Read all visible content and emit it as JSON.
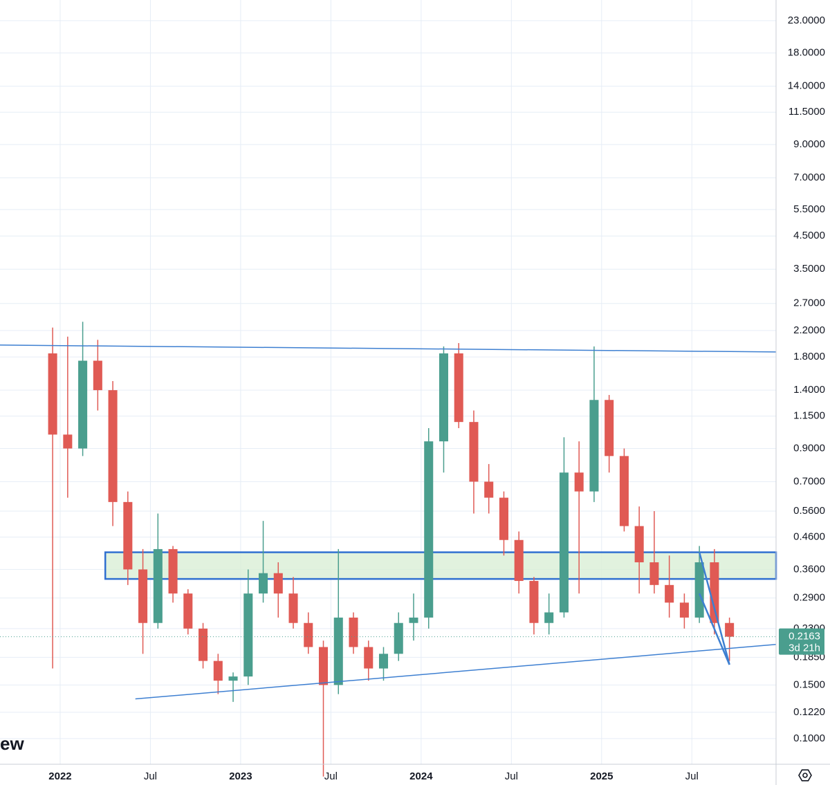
{
  "chart_data": {
    "type": "candlestick",
    "log_scale": true,
    "grid": true,
    "up_color": "#4a9e8e",
    "down_color": "#e05a54",
    "x": [
      "2021-12",
      "2022-01",
      "2022-02",
      "2022-03",
      "2022-04",
      "2022-05",
      "2022-06",
      "2022-07",
      "2022-08",
      "2022-09",
      "2022-10",
      "2022-11",
      "2022-12",
      "2023-01",
      "2023-02",
      "2023-03",
      "2023-04",
      "2023-05",
      "2023-06",
      "2023-07",
      "2023-08",
      "2023-09",
      "2023-10",
      "2023-11",
      "2023-12",
      "2024-01",
      "2024-02",
      "2024-03",
      "2024-04",
      "2024-05",
      "2024-06",
      "2024-07",
      "2024-08",
      "2024-09",
      "2024-10",
      "2024-11",
      "2024-12",
      "2025-01",
      "2025-02",
      "2025-03",
      "2025-04",
      "2025-05",
      "2025-06",
      "2025-07",
      "2025-08",
      "2025-09"
    ],
    "open": [
      1.85,
      1.0,
      0.9,
      1.75,
      1.4,
      0.6,
      0.36,
      0.24,
      0.42,
      0.3,
      0.23,
      0.18,
      0.155,
      0.16,
      0.3,
      0.35,
      0.3,
      0.24,
      0.2,
      0.15,
      0.25,
      0.2,
      0.17,
      0.19,
      0.24,
      0.25,
      0.95,
      1.85,
      1.1,
      0.7,
      0.62,
      0.45,
      0.33,
      0.24,
      0.26,
      0.75,
      0.65,
      1.3,
      0.85,
      0.5,
      0.38,
      0.32,
      0.28,
      0.25,
      0.38,
      0.24
    ],
    "high": [
      2.25,
      2.1,
      2.35,
      2.05,
      1.5,
      0.65,
      0.42,
      0.55,
      0.43,
      0.31,
      0.24,
      0.19,
      0.165,
      0.36,
      0.52,
      0.38,
      0.34,
      0.26,
      0.21,
      0.42,
      0.26,
      0.21,
      0.2,
      0.26,
      0.3,
      1.05,
      1.95,
      2.0,
      1.2,
      0.8,
      0.65,
      0.48,
      0.34,
      0.3,
      0.98,
      0.95,
      1.95,
      1.35,
      0.9,
      0.58,
      0.56,
      0.4,
      0.3,
      0.43,
      0.42,
      0.25
    ],
    "low": [
      0.17,
      0.62,
      0.85,
      1.2,
      0.5,
      0.32,
      0.19,
      0.23,
      0.28,
      0.22,
      0.17,
      0.14,
      0.132,
      0.15,
      0.28,
      0.25,
      0.23,
      0.19,
      0.075,
      0.14,
      0.19,
      0.155,
      0.155,
      0.18,
      0.21,
      0.23,
      0.75,
      1.05,
      0.55,
      0.55,
      0.4,
      0.3,
      0.22,
      0.22,
      0.25,
      0.3,
      0.6,
      0.75,
      0.48,
      0.3,
      0.3,
      0.25,
      0.23,
      0.24,
      0.22,
      0.18
    ],
    "close": [
      1.0,
      0.9,
      1.75,
      1.4,
      0.6,
      0.36,
      0.24,
      0.42,
      0.3,
      0.23,
      0.18,
      0.155,
      0.16,
      0.3,
      0.35,
      0.3,
      0.24,
      0.2,
      0.15,
      0.25,
      0.2,
      0.17,
      0.19,
      0.24,
      0.25,
      0.95,
      1.85,
      1.1,
      0.7,
      0.62,
      0.45,
      0.33,
      0.24,
      0.26,
      0.75,
      0.65,
      1.3,
      0.85,
      0.5,
      0.38,
      0.32,
      0.28,
      0.25,
      0.38,
      0.24,
      0.2163
    ],
    "xlim": [
      "2021-09",
      "2025-12"
    ],
    "xticks": [
      {
        "value": "2022-01",
        "label": "2022"
      },
      {
        "value": "2022-07",
        "label": "Jul"
      },
      {
        "value": "2023-01",
        "label": "2023"
      },
      {
        "value": "2023-07",
        "label": "Jul"
      },
      {
        "value": "2024-01",
        "label": "2024"
      },
      {
        "value": "2024-07",
        "label": "Jul"
      },
      {
        "value": "2025-01",
        "label": "2025"
      },
      {
        "value": "2025-07",
        "label": "Jul"
      }
    ],
    "ylim": [
      0.0823,
      26.9
    ],
    "yticks": [
      {
        "value": 23,
        "label": "23.0000"
      },
      {
        "value": 18,
        "label": "18.0000"
      },
      {
        "value": 14,
        "label": "14.0000"
      },
      {
        "value": 11.5,
        "label": "11.5000"
      },
      {
        "value": 9,
        "label": "9.0000"
      },
      {
        "value": 7,
        "label": "7.0000"
      },
      {
        "value": 5.5,
        "label": "5.5000"
      },
      {
        "value": 4.5,
        "label": "4.5000"
      },
      {
        "value": 3.5,
        "label": "3.5000"
      },
      {
        "value": 2.7,
        "label": "2.7000"
      },
      {
        "value": 2.2,
        "label": "2.2000"
      },
      {
        "value": 1.8,
        "label": "1.8000"
      },
      {
        "value": 1.4,
        "label": "1.4000"
      },
      {
        "value": 1.15,
        "label": "1.1500"
      },
      {
        "value": 0.9,
        "label": "0.9000"
      },
      {
        "value": 0.7,
        "label": "0.7000"
      },
      {
        "value": 0.56,
        "label": "0.5600"
      },
      {
        "value": 0.46,
        "label": "0.4600"
      },
      {
        "value": 0.36,
        "label": "0.3600"
      },
      {
        "value": 0.29,
        "label": "0.2900"
      },
      {
        "value": 0.23,
        "label": "0.2300"
      },
      {
        "value": 0.185,
        "label": "0.1850"
      },
      {
        "value": 0.15,
        "label": "0.1500"
      },
      {
        "value": 0.122,
        "label": "0.1220"
      },
      {
        "value": 0.1,
        "label": "0.1000"
      }
    ],
    "last_price": 0.2163,
    "countdown": "3d 21h",
    "trend_lines": [
      {
        "color": "#3d7fd1",
        "x": [
          "2021-09",
          "2025-12"
        ],
        "y": [
          1.97,
          1.87
        ]
      },
      {
        "color": "#3d7fd1",
        "x": [
          "2022-06",
          "2025-12"
        ],
        "y": [
          0.135,
          0.204
        ]
      },
      {
        "color": "#3d7fd1",
        "x": [
          "2025-07",
          "2025-09"
        ],
        "y": [
          0.41,
          0.175
        ]
      },
      {
        "color": "#3d7fd1",
        "x": [
          "2025-07",
          "2025-09"
        ],
        "y": [
          0.3,
          0.175
        ]
      }
    ],
    "zone": {
      "color": "#d9efd6",
      "border": "#2f6fd0",
      "x": [
        "2022-04",
        "2025-12"
      ],
      "y": [
        0.335,
        0.41
      ]
    },
    "watermark": "ew"
  }
}
